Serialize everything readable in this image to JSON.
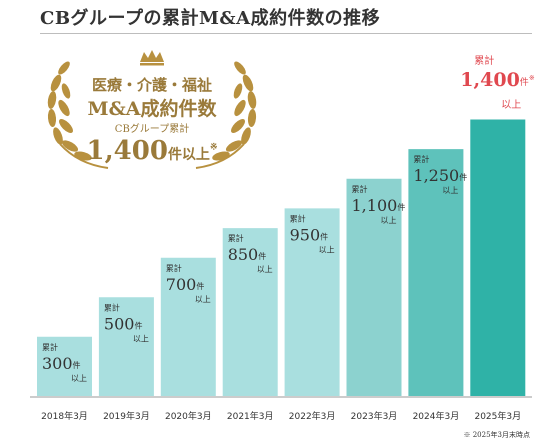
{
  "title": "CBグループの累計M&A成約件数の推移",
  "badge": {
    "line1": "医療・介護・福祉",
    "line2": "M&A成約件数",
    "line3": "CBグループ累計",
    "value": "1,400",
    "unit": "件以上",
    "mark": "※"
  },
  "footnote": "※ 2025年3月末時点",
  "colors": {
    "bars": [
      "#a9dfdf",
      "#a9dfdf",
      "#a9dfdf",
      "#a9dfdf",
      "#a9dfdf",
      "#8cd2cf",
      "#5ec2bb",
      "#2fb2a7"
    ],
    "highlight_label": "#e0484f",
    "text": "#333333",
    "gold": "#9a7a3a"
  },
  "chart_data": {
    "type": "bar",
    "categories": [
      "2018年3月",
      "2019年3月",
      "2020年3月",
      "2021年3月",
      "2022年3月",
      "2023年3月",
      "2024年3月",
      "2025年3月"
    ],
    "values": [
      300,
      500,
      700,
      850,
      950,
      1100,
      1250,
      1400
    ],
    "labels": [
      "300",
      "500",
      "700",
      "850",
      "950",
      "1,100",
      "1,250",
      "1,400"
    ],
    "label_prefix": "累計",
    "unit": "件",
    "suffix": "以上",
    "highlight_mark": "※"
  }
}
